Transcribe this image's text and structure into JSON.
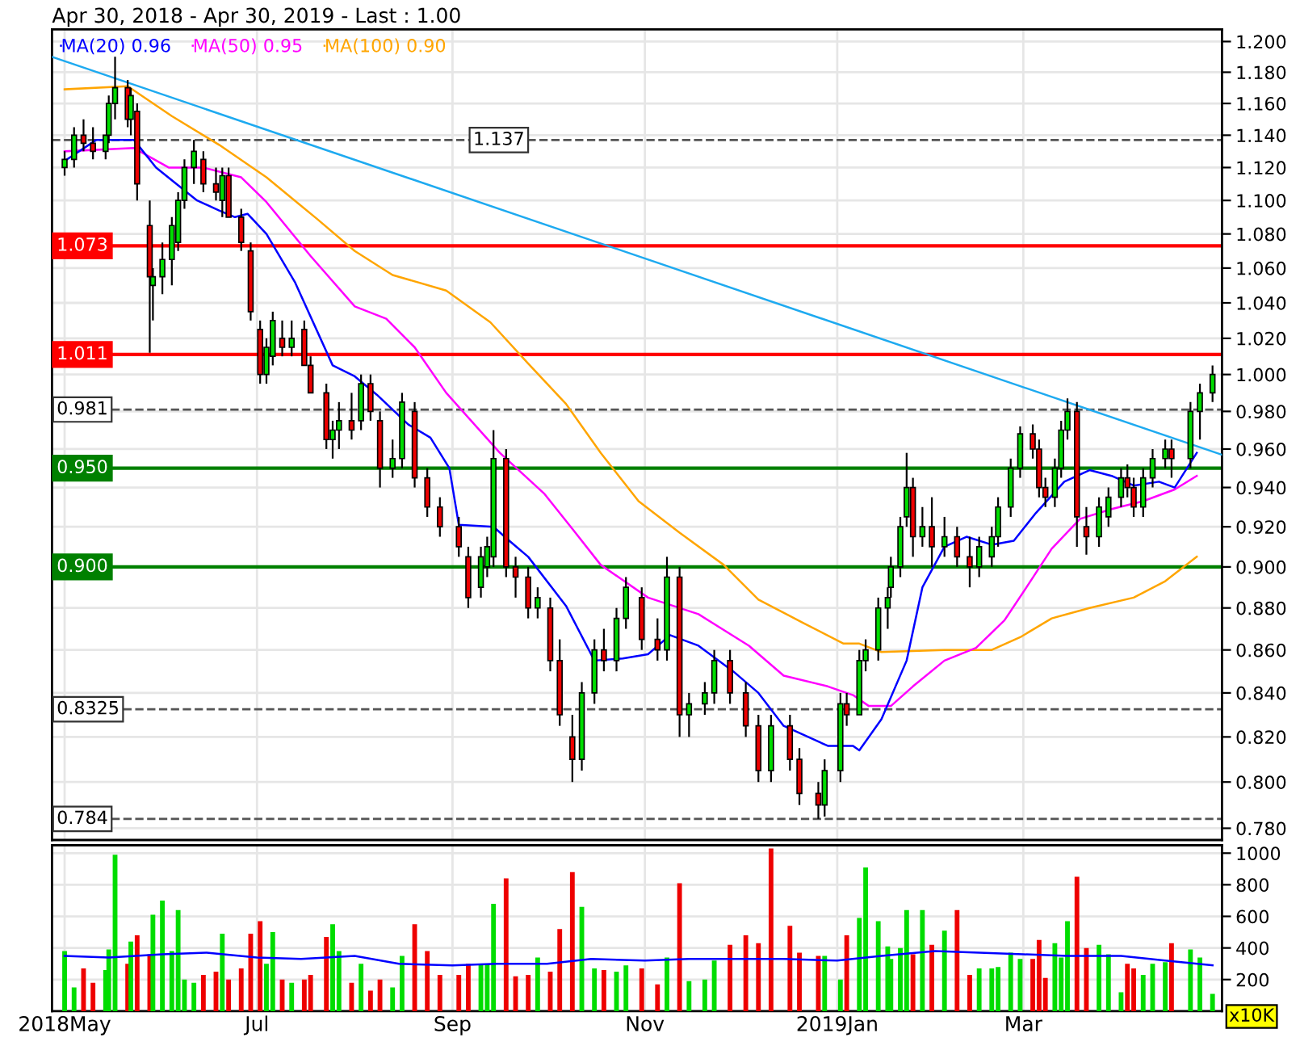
{
  "chart_data": [
    {
      "type": "candlestick",
      "title": "Apr 30, 2018 - Apr 30, 2019 - Last : 1.00",
      "log": true,
      "grid": true,
      "legend": "top left",
      "tick_labels": "y",
      "xlim": [
        "2018-04-27",
        "2019-05-03"
      ],
      "xticks": [
        {
          "value": "2018-05-01",
          "label": null
        },
        {
          "value": "2018-07-01",
          "label": null
        },
        {
          "value": "2018-09-01",
          "label": null
        },
        {
          "value": "2018-11-01",
          "label": null
        },
        {
          "value": "2019-01-01",
          "label": null
        },
        {
          "value": "2019-03-01",
          "label": null
        }
      ],
      "ylim": [
        0.775,
        1.208
      ],
      "yticks": [
        {
          "value": 0.78,
          "label": "0.780"
        },
        {
          "value": 0.8,
          "label": "0.800"
        },
        {
          "value": 0.82,
          "label": "0.820"
        },
        {
          "value": 0.84,
          "label": "0.840"
        },
        {
          "value": 0.86,
          "label": "0.860"
        },
        {
          "value": 0.88,
          "label": "0.880"
        },
        {
          "value": 0.9,
          "label": "0.900"
        },
        {
          "value": 0.92,
          "label": "0.920"
        },
        {
          "value": 0.94,
          "label": "0.940"
        },
        {
          "value": 0.96,
          "label": "0.960"
        },
        {
          "value": 0.98,
          "label": "0.980"
        },
        {
          "value": 1.0,
          "label": "1.000"
        },
        {
          "value": 1.02,
          "label": "1.020"
        },
        {
          "value": 1.04,
          "label": "1.040"
        },
        {
          "value": 1.06,
          "label": "1.060"
        },
        {
          "value": 1.08,
          "label": "1.080"
        },
        {
          "value": 1.1,
          "label": "1.100"
        },
        {
          "value": 1.12,
          "label": "1.120"
        },
        {
          "value": 1.14,
          "label": "1.140"
        },
        {
          "value": 1.16,
          "label": "1.160"
        },
        {
          "value": 1.18,
          "label": "1.180"
        },
        {
          "value": 1.2,
          "label": "1.200"
        }
      ],
      "ref_lines": [
        {
          "axis": "y",
          "value": 1.137,
          "label": "1.137",
          "color": "#555555",
          "line_style": "dashed"
        },
        {
          "axis": "y",
          "value": 1.073,
          "label": "1.073",
          "color": "#ff0000",
          "line_style": "solid"
        },
        {
          "axis": "y",
          "value": 1.011,
          "label": "1.011",
          "color": "#ff0000",
          "line_style": "solid"
        },
        {
          "axis": "y",
          "value": 0.981,
          "label": "0.981",
          "color": "#555555",
          "line_style": "dashed"
        },
        {
          "axis": "y",
          "value": 0.95,
          "label": "0.950",
          "color": "#008000",
          "line_style": "solid"
        },
        {
          "axis": "y",
          "value": 0.9,
          "label": "0.900",
          "color": "#008000",
          "line_style": "solid"
        },
        {
          "axis": "y",
          "value": 0.8325,
          "label": "0.8325",
          "color": "#555555",
          "line_style": "dashed"
        },
        {
          "axis": "y",
          "value": 0.784,
          "label": "0.784",
          "color": "#555555",
          "line_style": "dashed"
        }
      ],
      "series": [
        {
          "type": "line",
          "color": "#1eaaf0",
          "x": [
            "2018-04-27",
            "2019-05-03"
          ],
          "values": [
            1.19,
            0.957
          ]
        },
        {
          "type": "line",
          "name": "MA(100) 0.90",
          "color": "#ffa500",
          "x": [
            "2018-05-01",
            "2018-05-21",
            "2018-06-04",
            "2018-06-19",
            "2018-07-04",
            "2018-07-20",
            "2018-08-01",
            "2018-08-13",
            "2018-08-30",
            "2018-09-13",
            "2018-09-25",
            "2018-10-07",
            "2018-10-18",
            "2018-10-30",
            "2018-11-12",
            "2018-11-26",
            "2018-12-07",
            "2018-12-21",
            "2019-01-03",
            "2019-01-08",
            "2019-01-15",
            "2019-02-04",
            "2019-02-19",
            "2019-02-28",
            "2019-03-10",
            "2019-03-22",
            "2019-04-05",
            "2019-04-15",
            "2019-04-25"
          ],
          "values": [
            1.169,
            1.171,
            1.152,
            1.134,
            1.114,
            1.089,
            1.07,
            1.056,
            1.047,
            1.029,
            1.006,
            0.984,
            0.958,
            0.933,
            0.917,
            0.901,
            0.884,
            0.873,
            0.863,
            0.863,
            0.859,
            0.86,
            0.86,
            0.866,
            0.875,
            0.88,
            0.885,
            0.893,
            0.905
          ]
        },
        {
          "type": "line",
          "name": "MA(50) 0.95",
          "color": "#ff00ff",
          "x": [
            "2018-05-01",
            "2018-05-23",
            "2018-06-03",
            "2018-06-14",
            "2018-06-26",
            "2018-07-04",
            "2018-07-18",
            "2018-08-01",
            "2018-08-11",
            "2018-08-20",
            "2018-08-30",
            "2018-09-16",
            "2018-09-30",
            "2018-10-09",
            "2018-10-18",
            "2018-11-02",
            "2018-11-18",
            "2018-12-04",
            "2018-12-15",
            "2018-12-29",
            "2019-01-06",
            "2019-01-11",
            "2019-01-18",
            "2019-01-25",
            "2019-02-04",
            "2019-02-14",
            "2019-02-23",
            "2019-03-02",
            "2019-03-10",
            "2019-03-19",
            "2019-03-29",
            "2019-04-08",
            "2019-04-18",
            "2019-04-25"
          ],
          "values": [
            1.13,
            1.132,
            1.12,
            1.12,
            1.114,
            1.099,
            1.067,
            1.038,
            1.031,
            1.015,
            0.99,
            0.958,
            0.937,
            0.919,
            0.901,
            0.885,
            0.877,
            0.862,
            0.848,
            0.843,
            0.839,
            0.834,
            0.834,
            0.843,
            0.855,
            0.861,
            0.874,
            0.89,
            0.909,
            0.924,
            0.929,
            0.933,
            0.939,
            0.946
          ]
        },
        {
          "type": "line",
          "name": "MA(20) 0.96",
          "color": "#0000ff",
          "x": [
            "2018-05-01",
            "2018-05-11",
            "2018-05-23",
            "2018-05-30",
            "2018-06-12",
            "2018-06-19",
            "2018-06-24",
            "2018-06-28",
            "2018-07-04",
            "2018-07-13",
            "2018-07-25",
            "2018-08-01",
            "2018-08-08",
            "2018-08-18",
            "2018-08-25",
            "2018-08-31",
            "2018-09-03",
            "2018-09-14",
            "2018-09-19",
            "2018-09-25",
            "2018-10-07",
            "2018-10-16",
            "2018-10-25",
            "2018-11-02",
            "2018-11-09",
            "2018-11-18",
            "2018-11-29",
            "2018-12-07",
            "2018-12-15",
            "2018-12-29",
            "2019-01-06",
            "2019-01-08",
            "2019-01-15",
            "2019-01-23",
            "2019-01-28",
            "2019-02-04",
            "2019-02-11",
            "2019-02-19",
            "2019-02-26",
            "2019-03-05",
            "2019-03-14",
            "2019-03-22",
            "2019-03-29",
            "2019-04-05",
            "2019-04-13",
            "2019-04-18",
            "2019-04-25"
          ],
          "values": [
            1.124,
            1.137,
            1.137,
            1.12,
            1.1,
            1.094,
            1.09,
            1.092,
            1.08,
            1.052,
            1.005,
            0.999,
            0.989,
            0.973,
            0.966,
            0.95,
            0.921,
            0.92,
            0.913,
            0.905,
            0.881,
            0.855,
            0.856,
            0.858,
            0.867,
            0.862,
            0.85,
            0.84,
            0.825,
            0.816,
            0.816,
            0.814,
            0.828,
            0.855,
            0.89,
            0.91,
            0.915,
            0.911,
            0.913,
            0.927,
            0.943,
            0.949,
            0.946,
            0.941,
            0.943,
            0.94,
            0.958
          ]
        },
        {
          "x": [
            "2018-05-01",
            "2018-05-04",
            "2018-05-07",
            "2018-05-10",
            "2018-05-14",
            "2018-05-15",
            "2018-05-17",
            "2018-05-21",
            "2018-05-22",
            "2018-05-24",
            "2018-05-28",
            "2018-05-29",
            "2018-06-01",
            "2018-06-04",
            "2018-06-06",
            "2018-06-08",
            "2018-06-11",
            "2018-06-14",
            "2018-06-18",
            "2018-06-20",
            "2018-06-22",
            "2018-06-26",
            "2018-06-29",
            "2018-07-02",
            "2018-07-04",
            "2018-07-06",
            "2018-07-09",
            "2018-07-12",
            "2018-07-16",
            "2018-07-18",
            "2018-07-23",
            "2018-07-25",
            "2018-07-27",
            "2018-07-31",
            "2018-08-03",
            "2018-08-06",
            "2018-08-09",
            "2018-08-13",
            "2018-08-16",
            "2018-08-20",
            "2018-08-24",
            "2018-08-28",
            "2018-09-03",
            "2018-09-06",
            "2018-09-10",
            "2018-09-12",
            "2018-09-14",
            "2018-09-18",
            "2018-09-21",
            "2018-09-25",
            "2018-09-28",
            "2018-10-02",
            "2018-10-05",
            "2018-10-09",
            "2018-10-12",
            "2018-10-16",
            "2018-10-19",
            "2018-10-23",
            "2018-10-26",
            "2018-10-31",
            "2018-11-05",
            "2018-11-08",
            "2018-11-12",
            "2018-11-15",
            "2018-11-20",
            "2018-11-23",
            "2018-11-28",
            "2018-12-03",
            "2018-12-07",
            "2018-12-11",
            "2018-12-17",
            "2018-12-20",
            "2018-12-26",
            "2018-12-28",
            "2019-01-02",
            "2019-01-04",
            "2019-01-08",
            "2019-01-10",
            "2019-01-14",
            "2019-01-17",
            "2019-01-18",
            "2019-01-21",
            "2019-01-23",
            "2019-01-25",
            "2019-01-28",
            "2019-01-31",
            "2019-02-04",
            "2019-02-08",
            "2019-02-12",
            "2019-02-15",
            "2019-02-19",
            "2019-02-21",
            "2019-02-25",
            "2019-02-28",
            "2019-03-04",
            "2019-03-06",
            "2019-03-08",
            "2019-03-11",
            "2019-03-13",
            "2019-03-15",
            "2019-03-18",
            "2019-03-21",
            "2019-03-25",
            "2019-03-28",
            "2019-04-01",
            "2019-04-03",
            "2019-04-05",
            "2019-04-08",
            "2019-04-11",
            "2019-04-15",
            "2019-04-17",
            "2019-04-23",
            "2019-04-26",
            "2019-04-30"
          ],
          "ohlc": [
            [
              1.12,
              1.13,
              1.115,
              1.125
            ],
            [
              1.125,
              1.145,
              1.12,
              1.14
            ],
            [
              1.14,
              1.15,
              1.13,
              1.135
            ],
            [
              1.135,
              1.145,
              1.125,
              1.13
            ],
            [
              1.13,
              1.14,
              1.125,
              1.14
            ],
            [
              1.14,
              1.165,
              1.135,
              1.16
            ],
            [
              1.16,
              1.19,
              1.15,
              1.17
            ],
            [
              1.17,
              1.175,
              1.145,
              1.15
            ],
            [
              1.15,
              1.17,
              1.14,
              1.165
            ],
            [
              1.155,
              1.16,
              1.1,
              1.11
            ],
            [
              1.085,
              1.1,
              1.012,
              1.055
            ],
            [
              1.05,
              1.06,
              1.03,
              1.055
            ],
            [
              1.055,
              1.075,
              1.045,
              1.065
            ],
            [
              1.065,
              1.09,
              1.05,
              1.085
            ],
            [
              1.075,
              1.105,
              1.07,
              1.1
            ],
            [
              1.1,
              1.125,
              1.095,
              1.12
            ],
            [
              1.12,
              1.137,
              1.11,
              1.13
            ],
            [
              1.125,
              1.13,
              1.105,
              1.11
            ],
            [
              1.11,
              1.12,
              1.1,
              1.105
            ],
            [
              1.1,
              1.12,
              1.09,
              1.115
            ],
            [
              1.115,
              1.12,
              1.09,
              1.09
            ],
            [
              1.09,
              1.095,
              1.07,
              1.075
            ],
            [
              1.07,
              1.075,
              1.03,
              1.035
            ],
            [
              1.025,
              1.03,
              0.995,
              1.0
            ],
            [
              1.0,
              1.02,
              0.995,
              1.015
            ],
            [
              1.01,
              1.035,
              1.005,
              1.03
            ],
            [
              1.02,
              1.03,
              1.01,
              1.015
            ],
            [
              1.015,
              1.03,
              1.01,
              1.02
            ],
            [
              1.025,
              1.03,
              1.005,
              1.005
            ],
            [
              1.005,
              1.01,
              0.99,
              0.99
            ],
            [
              0.99,
              0.995,
              0.96,
              0.965
            ],
            [
              0.965,
              0.975,
              0.955,
              0.97
            ],
            [
              0.97,
              0.985,
              0.96,
              0.975
            ],
            [
              0.975,
              0.99,
              0.965,
              0.97
            ],
            [
              0.975,
              1.0,
              0.97,
              0.995
            ],
            [
              0.995,
              1.0,
              0.975,
              0.98
            ],
            [
              0.975,
              0.98,
              0.94,
              0.95
            ],
            [
              0.95,
              0.965,
              0.945,
              0.955
            ],
            [
              0.955,
              0.99,
              0.95,
              0.985
            ],
            [
              0.98,
              0.985,
              0.94,
              0.945
            ],
            [
              0.945,
              0.95,
              0.925,
              0.93
            ],
            [
              0.93,
              0.935,
              0.915,
              0.92
            ],
            [
              0.92,
              0.925,
              0.905,
              0.91
            ],
            [
              0.905,
              0.91,
              0.88,
              0.885
            ],
            [
              0.89,
              0.91,
              0.885,
              0.905
            ],
            [
              0.9,
              0.915,
              0.895,
              0.91
            ],
            [
              0.905,
              0.97,
              0.9,
              0.955
            ],
            [
              0.955,
              0.96,
              0.895,
              0.9
            ],
            [
              0.9,
              0.905,
              0.885,
              0.895
            ],
            [
              0.895,
              0.9,
              0.875,
              0.88
            ],
            [
              0.88,
              0.89,
              0.875,
              0.885
            ],
            [
              0.88,
              0.885,
              0.85,
              0.855
            ],
            [
              0.855,
              0.865,
              0.825,
              0.83
            ],
            [
              0.82,
              0.83,
              0.8,
              0.81
            ],
            [
              0.81,
              0.845,
              0.805,
              0.84
            ],
            [
              0.84,
              0.865,
              0.835,
              0.86
            ],
            [
              0.86,
              0.87,
              0.85,
              0.855
            ],
            [
              0.855,
              0.88,
              0.85,
              0.875
            ],
            [
              0.875,
              0.895,
              0.87,
              0.89
            ],
            [
              0.885,
              0.89,
              0.86,
              0.865
            ],
            [
              0.865,
              0.875,
              0.855,
              0.86
            ],
            [
              0.86,
              0.905,
              0.855,
              0.895
            ],
            [
              0.895,
              0.9,
              0.82,
              0.83
            ],
            [
              0.83,
              0.84,
              0.82,
              0.835
            ],
            [
              0.835,
              0.845,
              0.83,
              0.84
            ],
            [
              0.84,
              0.86,
              0.835,
              0.855
            ],
            [
              0.855,
              0.86,
              0.835,
              0.84
            ],
            [
              0.84,
              0.845,
              0.82,
              0.825
            ],
            [
              0.825,
              0.83,
              0.8,
              0.805
            ],
            [
              0.805,
              0.83,
              0.8,
              0.825
            ],
            [
              0.825,
              0.83,
              0.805,
              0.81
            ],
            [
              0.81,
              0.815,
              0.79,
              0.795
            ],
            [
              0.795,
              0.8,
              0.784,
              0.79
            ],
            [
              0.79,
              0.81,
              0.785,
              0.805
            ],
            [
              0.805,
              0.84,
              0.8,
              0.835
            ],
            [
              0.835,
              0.84,
              0.825,
              0.83
            ],
            [
              0.83,
              0.86,
              0.83,
              0.855
            ],
            [
              0.855,
              0.865,
              0.85,
              0.86
            ],
            [
              0.86,
              0.885,
              0.855,
              0.88
            ],
            [
              0.88,
              0.89,
              0.87,
              0.885
            ],
            [
              0.89,
              0.905,
              0.885,
              0.9
            ],
            [
              0.9,
              0.925,
              0.895,
              0.92
            ],
            [
              0.925,
              0.958,
              0.92,
              0.94
            ],
            [
              0.94,
              0.945,
              0.905,
              0.915
            ],
            [
              0.915,
              0.93,
              0.91,
              0.92
            ],
            [
              0.92,
              0.935,
              0.9,
              0.91
            ],
            [
              0.91,
              0.925,
              0.905,
              0.915
            ],
            [
              0.915,
              0.92,
              0.9,
              0.905
            ],
            [
              0.905,
              0.915,
              0.89,
              0.9
            ],
            [
              0.9,
              0.915,
              0.895,
              0.91
            ],
            [
              0.905,
              0.92,
              0.9,
              0.915
            ],
            [
              0.915,
              0.935,
              0.91,
              0.93
            ],
            [
              0.93,
              0.955,
              0.925,
              0.95
            ],
            [
              0.95,
              0.972,
              0.945,
              0.968
            ],
            [
              0.968,
              0.973,
              0.955,
              0.96
            ],
            [
              0.96,
              0.965,
              0.935,
              0.94
            ],
            [
              0.94,
              0.945,
              0.93,
              0.935
            ],
            [
              0.935,
              0.955,
              0.93,
              0.95
            ],
            [
              0.95,
              0.975,
              0.945,
              0.97
            ],
            [
              0.97,
              0.987,
              0.965,
              0.98
            ],
            [
              0.98,
              0.985,
              0.91,
              0.925
            ],
            [
              0.92,
              0.93,
              0.906,
              0.915
            ],
            [
              0.915,
              0.935,
              0.91,
              0.93
            ],
            [
              0.925,
              0.94,
              0.92,
              0.935
            ],
            [
              0.935,
              0.95,
              0.93,
              0.945
            ],
            [
              0.945,
              0.952,
              0.935,
              0.94
            ],
            [
              0.94,
              0.945,
              0.925,
              0.93
            ],
            [
              0.93,
              0.95,
              0.925,
              0.945
            ],
            [
              0.945,
              0.96,
              0.94,
              0.955
            ],
            [
              0.955,
              0.965,
              0.95,
              0.96
            ],
            [
              0.96,
              0.965,
              0.945,
              0.955
            ],
            [
              0.955,
              0.985,
              0.95,
              0.98
            ],
            [
              0.98,
              0.995,
              0.965,
              0.99
            ],
            [
              0.99,
              1.005,
              0.985,
              1.0
            ]
          ],
          "colors": [
            "#00dd00",
            "#00dd00",
            "#ee0000",
            "#ee0000",
            "#00dd00",
            "#00dd00",
            "#00dd00",
            "#ee0000",
            "#00dd00",
            "#ee0000",
            "#ee0000",
            "#00dd00",
            "#00dd00",
            "#00dd00",
            "#00dd00",
            "#00dd00",
            "#00dd00",
            "#ee0000",
            "#ee0000",
            "#00dd00",
            "#ee0000",
            "#ee0000",
            "#ee0000",
            "#ee0000",
            "#00dd00",
            "#00dd00",
            "#ee0000",
            "#00dd00",
            "#ee0000",
            "#ee0000",
            "#ee0000",
            "#00dd00",
            "#00dd00",
            "#ee0000",
            "#00dd00",
            "#ee0000",
            "#ee0000",
            "#00dd00",
            "#00dd00",
            "#ee0000",
            "#ee0000",
            "#ee0000",
            "#ee0000",
            "#ee0000",
            "#00dd00",
            "#00dd00",
            "#00dd00",
            "#ee0000",
            "#ee0000",
            "#ee0000",
            "#00dd00",
            "#ee0000",
            "#ee0000",
            "#ee0000",
            "#00dd00",
            "#00dd00",
            "#ee0000",
            "#00dd00",
            "#00dd00",
            "#ee0000",
            "#ee0000",
            "#00dd00",
            "#ee0000",
            "#00dd00",
            "#00dd00",
            "#00dd00",
            "#ee0000",
            "#ee0000",
            "#ee0000",
            "#00dd00",
            "#ee0000",
            "#ee0000",
            "#ee0000",
            "#00dd00",
            "#00dd00",
            "#ee0000",
            "#00dd00",
            "#00dd00",
            "#00dd00",
            "#00dd00",
            "#00dd00",
            "#00dd00",
            "#00dd00",
            "#ee0000",
            "#00dd00",
            "#ee0000",
            "#00dd00",
            "#ee0000",
            "#ee0000",
            "#00dd00",
            "#00dd00",
            "#00dd00",
            "#00dd00",
            "#00dd00",
            "#ee0000",
            "#ee0000",
            "#ee0000",
            "#00dd00",
            "#00dd00",
            "#00dd00",
            "#ee0000",
            "#ee0000",
            "#00dd00",
            "#00dd00",
            "#00dd00",
            "#ee0000",
            "#ee0000",
            "#00dd00",
            "#00dd00",
            "#00dd00",
            "#ee0000",
            "#00dd00",
            "#00dd00",
            "#00dd00"
          ]
        }
      ]
    },
    {
      "type": "bar",
      "grid": true,
      "ylabel": "x10K",
      "xlim": [
        "2018-04-27",
        "2019-05-03"
      ],
      "xticks": [
        {
          "value": "2018-05-01",
          "label": "2018May"
        },
        {
          "value": "2018-07-01",
          "label": "Jul"
        },
        {
          "value": "2018-09-01",
          "label": "Sep"
        },
        {
          "value": "2018-11-01",
          "label": "Nov"
        },
        {
          "value": "2019-01-01",
          "label": "2019Jan"
        },
        {
          "value": "2019-03-01",
          "label": "Mar"
        }
      ],
      "ylim": [
        0,
        1050
      ],
      "yticks": [
        200,
        400,
        600,
        800,
        1000
      ],
      "series": [
        {
          "x": [
            "2018-05-01",
            "2018-05-04",
            "2018-05-07",
            "2018-05-10",
            "2018-05-14",
            "2018-05-15",
            "2018-05-17",
            "2018-05-21",
            "2018-05-22",
            "2018-05-24",
            "2018-05-28",
            "2018-05-29",
            "2018-06-01",
            "2018-06-04",
            "2018-06-06",
            "2018-06-08",
            "2018-06-11",
            "2018-06-14",
            "2018-06-18",
            "2018-06-20",
            "2018-06-22",
            "2018-06-26",
            "2018-06-29",
            "2018-07-02",
            "2018-07-04",
            "2018-07-06",
            "2018-07-09",
            "2018-07-12",
            "2018-07-16",
            "2018-07-18",
            "2018-07-23",
            "2018-07-25",
            "2018-07-27",
            "2018-07-31",
            "2018-08-03",
            "2018-08-06",
            "2018-08-09",
            "2018-08-13",
            "2018-08-16",
            "2018-08-20",
            "2018-08-24",
            "2018-08-28",
            "2018-09-03",
            "2018-09-06",
            "2018-09-10",
            "2018-09-12",
            "2018-09-14",
            "2018-09-18",
            "2018-09-21",
            "2018-09-25",
            "2018-09-28",
            "2018-10-02",
            "2018-10-05",
            "2018-10-09",
            "2018-10-12",
            "2018-10-16",
            "2018-10-19",
            "2018-10-23",
            "2018-10-26",
            "2018-10-31",
            "2018-11-05",
            "2018-11-08",
            "2018-11-12",
            "2018-11-15",
            "2018-11-20",
            "2018-11-23",
            "2018-11-28",
            "2018-12-03",
            "2018-12-07",
            "2018-12-11",
            "2018-12-17",
            "2018-12-20",
            "2018-12-26",
            "2018-12-28",
            "2019-01-02",
            "2019-01-04",
            "2019-01-08",
            "2019-01-10",
            "2019-01-14",
            "2019-01-17",
            "2019-01-18",
            "2019-01-21",
            "2019-01-23",
            "2019-01-25",
            "2019-01-28",
            "2019-01-31",
            "2019-02-04",
            "2019-02-08",
            "2019-02-12",
            "2019-02-15",
            "2019-02-19",
            "2019-02-21",
            "2019-02-25",
            "2019-02-28",
            "2019-03-04",
            "2019-03-06",
            "2019-03-08",
            "2019-03-11",
            "2019-03-13",
            "2019-03-15",
            "2019-03-18",
            "2019-03-21",
            "2019-03-25",
            "2019-03-28",
            "2019-04-01",
            "2019-04-03",
            "2019-04-05",
            "2019-04-08",
            "2019-04-11",
            "2019-04-15",
            "2019-04-17",
            "2019-04-23",
            "2019-04-26",
            "2019-04-30"
          ],
          "values": [
            380,
            150,
            270,
            180,
            260,
            390,
            990,
            300,
            440,
            480,
            360,
            610,
            700,
            380,
            640,
            200,
            180,
            230,
            250,
            490,
            200,
            270,
            490,
            570,
            300,
            500,
            200,
            180,
            200,
            230,
            470,
            550,
            380,
            180,
            300,
            130,
            200,
            150,
            350,
            550,
            380,
            230,
            230,
            300,
            300,
            300,
            680,
            840,
            220,
            230,
            340,
            250,
            520,
            880,
            660,
            270,
            260,
            250,
            290,
            270,
            170,
            340,
            810,
            190,
            200,
            320,
            420,
            480,
            430,
            1030,
            540,
            370,
            350,
            350,
            200,
            480,
            590,
            910,
            570,
            410,
            330,
            400,
            640,
            360,
            640,
            420,
            510,
            640,
            230,
            270,
            270,
            280,
            370,
            330,
            330,
            450,
            210,
            430,
            340,
            570,
            850,
            400,
            420,
            360,
            120,
            300,
            270,
            230,
            300,
            310,
            430,
            390,
            340,
            110
          ],
          "colors": [
            "#00dd00",
            "#00dd00",
            "#ee0000",
            "#ee0000",
            "#00dd00",
            "#00dd00",
            "#00dd00",
            "#ee0000",
            "#00dd00",
            "#ee0000",
            "#ee0000",
            "#00dd00",
            "#00dd00",
            "#00dd00",
            "#00dd00",
            "#00dd00",
            "#00dd00",
            "#ee0000",
            "#ee0000",
            "#00dd00",
            "#ee0000",
            "#ee0000",
            "#ee0000",
            "#ee0000",
            "#00dd00",
            "#00dd00",
            "#ee0000",
            "#00dd00",
            "#ee0000",
            "#ee0000",
            "#ee0000",
            "#00dd00",
            "#00dd00",
            "#ee0000",
            "#00dd00",
            "#ee0000",
            "#ee0000",
            "#00dd00",
            "#00dd00",
            "#ee0000",
            "#ee0000",
            "#ee0000",
            "#ee0000",
            "#ee0000",
            "#00dd00",
            "#00dd00",
            "#00dd00",
            "#ee0000",
            "#ee0000",
            "#ee0000",
            "#00dd00",
            "#ee0000",
            "#ee0000",
            "#ee0000",
            "#00dd00",
            "#00dd00",
            "#ee0000",
            "#00dd00",
            "#00dd00",
            "#ee0000",
            "#ee0000",
            "#00dd00",
            "#ee0000",
            "#00dd00",
            "#00dd00",
            "#00dd00",
            "#ee0000",
            "#ee0000",
            "#ee0000",
            "#ee0000",
            "#ee0000",
            "#ee0000",
            "#ee0000",
            "#00dd00",
            "#00dd00",
            "#ee0000",
            "#00dd00",
            "#00dd00",
            "#00dd00",
            "#00dd00",
            "#00dd00",
            "#00dd00",
            "#00dd00",
            "#ee0000",
            "#00dd00",
            "#ee0000",
            "#00dd00",
            "#ee0000",
            "#ee0000",
            "#00dd00",
            "#00dd00",
            "#00dd00",
            "#00dd00",
            "#00dd00",
            "#ee0000",
            "#ee0000",
            "#ee0000",
            "#00dd00",
            "#00dd00",
            "#00dd00",
            "#ee0000",
            "#ee0000",
            "#00dd00",
            "#00dd00",
            "#00dd00",
            "#ee0000",
            "#ee0000",
            "#00dd00",
            "#00dd00",
            "#00dd00",
            "#ee0000",
            "#00dd00",
            "#00dd00",
            "#00dd00"
          ]
        },
        {
          "type": "line",
          "color": "#0000ff",
          "x": [
            "2018-05-01",
            "2018-05-15",
            "2018-06-01",
            "2018-06-15",
            "2018-07-01",
            "2018-07-15",
            "2018-08-01",
            "2018-08-15",
            "2018-09-01",
            "2018-09-15",
            "2018-10-01",
            "2018-10-15",
            "2018-11-01",
            "2018-11-15",
            "2018-12-01",
            "2018-12-15",
            "2019-01-01",
            "2019-01-15",
            "2019-02-01",
            "2019-02-15",
            "2019-03-01",
            "2019-03-15",
            "2019-04-01",
            "2019-04-15",
            "2019-04-30"
          ],
          "values": [
            350,
            340,
            360,
            370,
            340,
            330,
            350,
            300,
            290,
            300,
            300,
            330,
            320,
            330,
            330,
            330,
            320,
            350,
            380,
            370,
            360,
            350,
            350,
            320,
            290
          ]
        }
      ]
    }
  ]
}
